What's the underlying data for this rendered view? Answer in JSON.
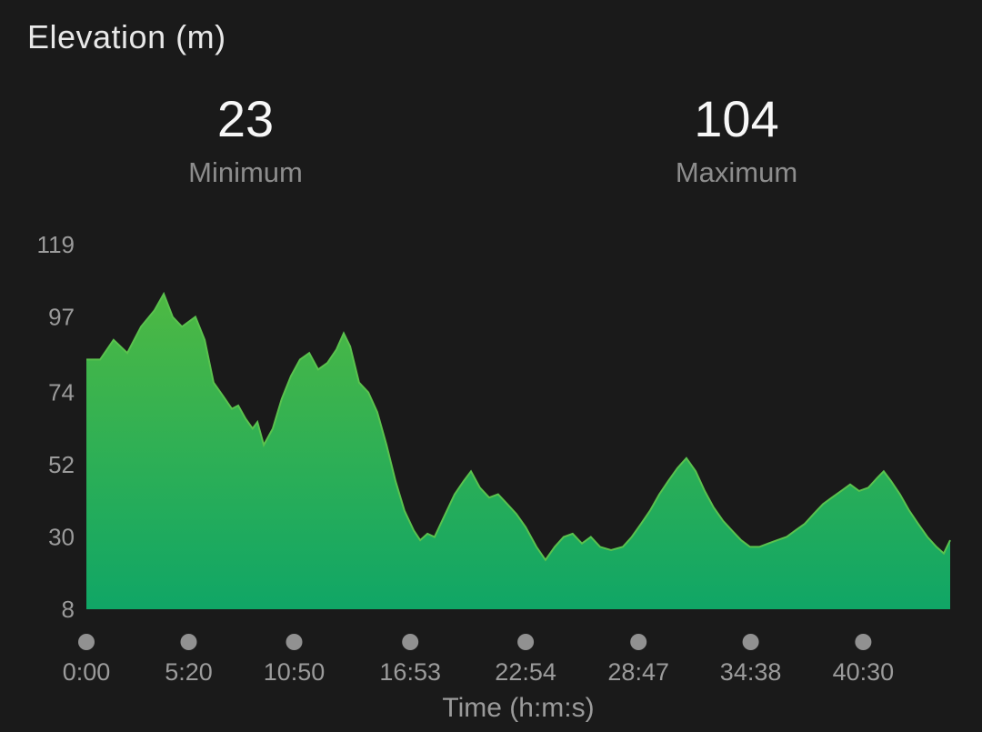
{
  "title": "Elevation (m)",
  "stats": [
    {
      "value": "23",
      "label": "Minimum"
    },
    {
      "value": "104",
      "label": "Maximum"
    }
  ],
  "chart_data": {
    "type": "area",
    "title": "Elevation (m)",
    "xlabel": "Time (h:m:s)",
    "ylabel": "Elevation (m)",
    "ylim": [
      8,
      119
    ],
    "x_domain": [
      0,
      2702
    ],
    "y_ticks": [
      119,
      97,
      74,
      52,
      30,
      8
    ],
    "x_ticks": [
      {
        "label": "0:00",
        "t": 0
      },
      {
        "label": "5:20",
        "t": 320
      },
      {
        "label": "10:50",
        "t": 650
      },
      {
        "label": "16:53",
        "t": 1013
      },
      {
        "label": "22:54",
        "t": 1374
      },
      {
        "label": "28:47",
        "t": 1727
      },
      {
        "label": "34:38",
        "t": 2078
      },
      {
        "label": "40:30",
        "t": 2430
      }
    ],
    "grid": false,
    "legend": false,
    "stat_minimum": 23,
    "stat_maximum": 104,
    "series": [
      {
        "name": "Elevation",
        "x": [
          0,
          43,
          85,
          128,
          171,
          213,
          242,
          270,
          299,
          327,
          341,
          370,
          398,
          427,
          455,
          475,
          498,
          520,
          535,
          555,
          583,
          611,
          640,
          668,
          697,
          725,
          754,
          782,
          805,
          825,
          853,
          882,
          910,
          939,
          967,
          995,
          1024,
          1044,
          1067,
          1089,
          1123,
          1152,
          1180,
          1203,
          1231,
          1260,
          1288,
          1317,
          1345,
          1374,
          1408,
          1436,
          1465,
          1493,
          1521,
          1550,
          1578,
          1607,
          1641,
          1678,
          1706,
          1735,
          1763,
          1792,
          1820,
          1849,
          1877,
          1906,
          1934,
          1962,
          1991,
          2019,
          2048,
          2076,
          2105,
          2133,
          2161,
          2190,
          2218,
          2247,
          2275,
          2304,
          2332,
          2361,
          2389,
          2417,
          2446,
          2474,
          2494,
          2517,
          2545,
          2574,
          2602,
          2631,
          2659,
          2682,
          2702
        ],
        "y": [
          84,
          84,
          90,
          86,
          94,
          99,
          104,
          97,
          94,
          96,
          97,
          90,
          77,
          73,
          69,
          70,
          66,
          63,
          65,
          58,
          63,
          72,
          79,
          84,
          86,
          81,
          83,
          87,
          92,
          88,
          77,
          74,
          68,
          58,
          47,
          38,
          32,
          29,
          31,
          30,
          37,
          43,
          47,
          50,
          45,
          42,
          43,
          40,
          37,
          33,
          27,
          23,
          27,
          30,
          31,
          28,
          30,
          27,
          26,
          27,
          30,
          34,
          38,
          43,
          47,
          51,
          54,
          50,
          44,
          39,
          35,
          32,
          29,
          27,
          27,
          28,
          29,
          30,
          32,
          34,
          37,
          40,
          42,
          44,
          46,
          44,
          45,
          48,
          50,
          47,
          43,
          38,
          34,
          30,
          27,
          25,
          29
        ]
      }
    ],
    "colors": {
      "background": "#1a1a1a",
      "area_top": "#4eb943",
      "area_bottom": "#10a666",
      "line": "#5ac24e",
      "axis_text": "#9b9b9b",
      "dot": "#919191",
      "stat_value": "#f7f7f7",
      "stat_label": "#8d8d8d",
      "title_text": "#e8e8e8"
    }
  }
}
